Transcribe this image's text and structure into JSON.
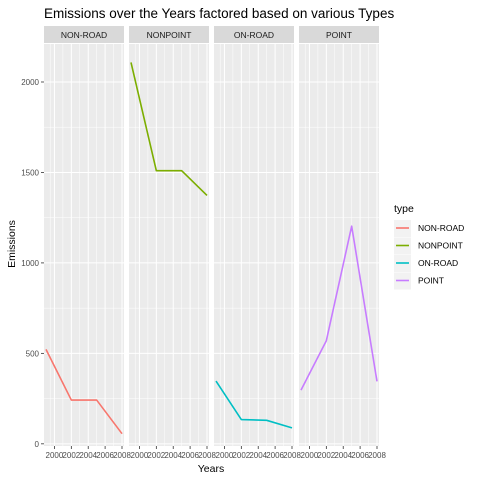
{
  "chart_data": {
    "type": "line",
    "title": "Emissions over the Years factored based on various Types",
    "xlabel": "Years",
    "ylabel": "Emissions",
    "x": [
      1999,
      2002,
      2005,
      2008
    ],
    "x_tick_labels": [
      "2000",
      "2002",
      "2004",
      "2006",
      "2008"
    ],
    "x_tick_values": [
      2000,
      2002,
      2004,
      2006,
      2008
    ],
    "xlim": [
      1999,
      2008
    ],
    "y_tick_labels": [
      "0",
      "500",
      "1000",
      "1500",
      "2000"
    ],
    "y_tick_values": [
      0,
      500,
      1000,
      1500,
      2000
    ],
    "ylim": [
      -12,
      2210
    ],
    "facet_order": [
      "NON-ROAD",
      "NONPOINT",
      "ON-ROAD",
      "POINT"
    ],
    "series": [
      {
        "name": "NON-ROAD",
        "values": [
          522,
          242,
          242,
          56
        ],
        "color": "#F8766D"
      },
      {
        "name": "NONPOINT",
        "values": [
          2108,
          1510,
          1510,
          1373
        ],
        "color": "#7CAE00"
      },
      {
        "name": "ON-ROAD",
        "values": [
          347,
          134,
          130,
          88
        ],
        "color": "#00BFC4"
      },
      {
        "name": "POINT",
        "values": [
          297,
          570,
          1203,
          345
        ],
        "color": "#C77CFF"
      }
    ],
    "legend": {
      "title": "type",
      "position": "right"
    },
    "grid": true,
    "panel_background": "#EBEBEB",
    "strip_background": "#D9D9D9"
  }
}
